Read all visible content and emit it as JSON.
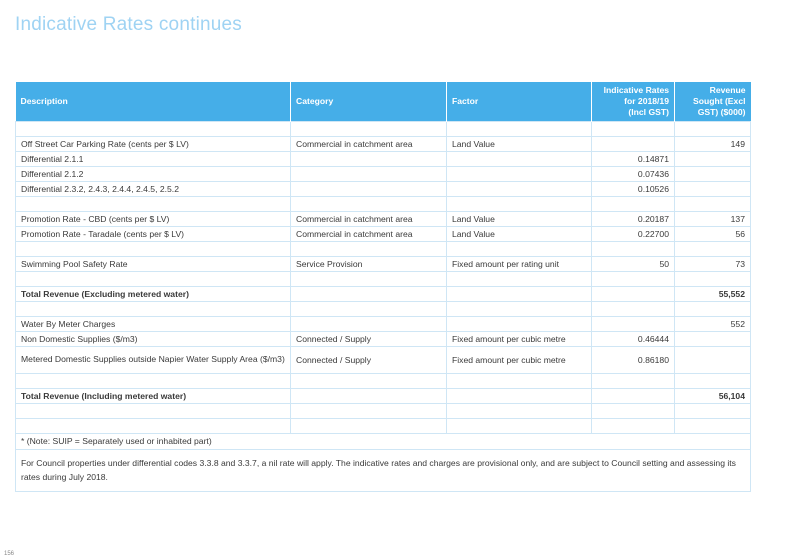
{
  "page": {
    "title": "Indicative Rates continues",
    "page_number": "156"
  },
  "table": {
    "headers": {
      "description": "Description",
      "category": "Category",
      "factor": "Factor",
      "rates_line1": "Indicative Rates",
      "rates_line2": "for 2018/19",
      "rates_line3": "(Incl GST)",
      "revenue_line1": "Revenue",
      "revenue_line2": "Sought  (Excl",
      "revenue_line3": "GST) ($000)"
    },
    "rows": [
      {
        "description": "Off Street Car Parking Rate (cents per $ LV)",
        "category": "Commercial in catchment area",
        "factor": "Land Value",
        "rate": "",
        "revenue": "149",
        "bold": false
      },
      {
        "description": "Differential 2.1.1",
        "category": "",
        "factor": "",
        "rate": "0.14871",
        "revenue": ""
      },
      {
        "description": "Differential 2.1.2",
        "category": "",
        "factor": "",
        "rate": "0.07436",
        "revenue": ""
      },
      {
        "description": "Differential 2.3.2, 2.4.3, 2.4.4, 2.4.5, 2.5.2",
        "category": "",
        "factor": "",
        "rate": "0.10526",
        "revenue": ""
      },
      {
        "description": "Promotion Rate - CBD (cents per $ LV)",
        "category": "Commercial in catchment area",
        "factor": "Land Value",
        "rate": "0.20187",
        "revenue": "137"
      },
      {
        "description": "Promotion Rate - Taradale (cents per $ LV)",
        "category": "Commercial in catchment area",
        "factor": "Land Value",
        "rate": "0.22700",
        "revenue": "56"
      },
      {
        "description": "Swimming Pool Safety Rate",
        "category": "Service Provision",
        "factor": "Fixed amount per rating unit",
        "rate": "50",
        "revenue": "73"
      },
      {
        "description": "Total Revenue  (Excluding metered water)",
        "category": "",
        "factor": "",
        "rate": "",
        "revenue": "55,552"
      },
      {
        "description": "Water By Meter Charges",
        "category": "",
        "factor": "",
        "rate": "",
        "revenue": "552"
      },
      {
        "description": "Non Domestic Supplies ($/m3)",
        "category": "Connected / Supply",
        "factor": "Fixed amount per cubic metre",
        "rate": "0.46444",
        "revenue": ""
      },
      {
        "description": "Metered Domestic Supplies outside Napier Water Supply Area ($/m3)",
        "category": "Connected / Supply",
        "factor": "Fixed amount per cubic metre",
        "rate": "0.86180",
        "revenue": ""
      },
      {
        "description": "Total Revenue  (Including metered water)",
        "category": "",
        "factor": "",
        "rate": "",
        "revenue": "56,104"
      }
    ],
    "note": "*  (Note:  SUIP = Separately used or inhabited part)",
    "footnote": "For Council properties under differential codes 3.3.8 and 3.3.7, a nil rate will apply.  The indicative rates and charges are provisional only, and are subject to Council setting and assessing its rates during July 2018."
  }
}
